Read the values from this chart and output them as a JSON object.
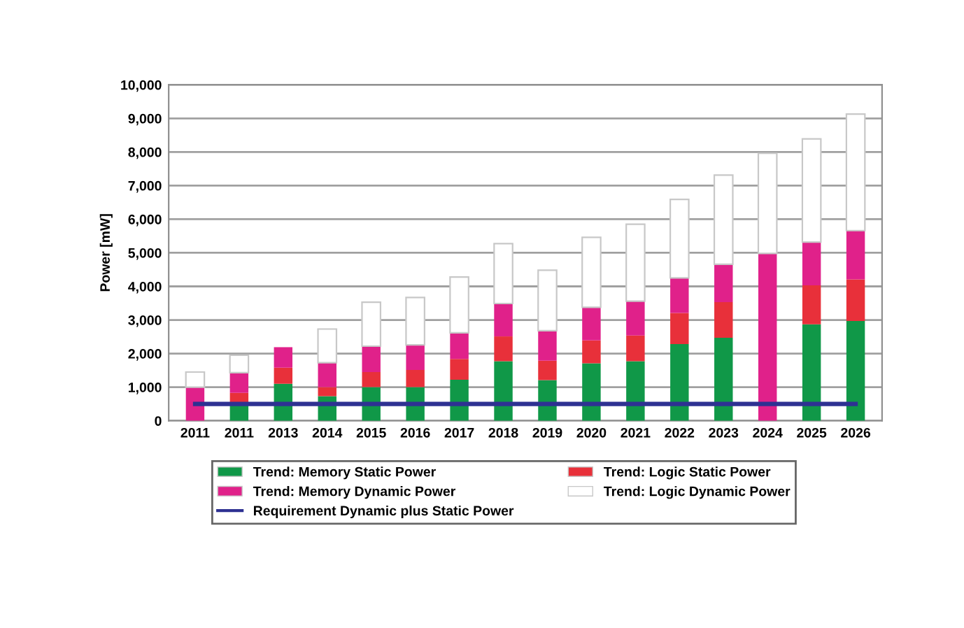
{
  "chart_data": {
    "type": "bar",
    "stacked": true,
    "ylabel": "Power [mW]",
    "categories": [
      "2011",
      "2011",
      "2013",
      "2014",
      "2015",
      "2016",
      "2017",
      "2018",
      "2019",
      "2020",
      "2021",
      "2022",
      "2023",
      "2024",
      "2025",
      "2026"
    ],
    "series": [
      {
        "name": "Trend: Memory Static Power",
        "color": "#109848",
        "values": [
          0,
          500,
          1100,
          730,
          1000,
          1000,
          1220,
          1770,
          1210,
          1710,
          1770,
          2280,
          2470,
          0,
          2870,
          2970
        ]
      },
      {
        "name": "Trend: Logic Static Power",
        "color": "#e8303a",
        "values": [
          0,
          330,
          480,
          270,
          450,
          510,
          620,
          740,
          580,
          680,
          770,
          930,
          1060,
          0,
          1160,
          1240
        ]
      },
      {
        "name": "Trend: Memory Dynamic Power",
        "color": "#e0218a",
        "values": [
          1000,
          600,
          610,
          730,
          770,
          750,
          780,
          980,
          890,
          990,
          1020,
          1040,
          1130,
          4980,
          1290,
          1450
        ]
      },
      {
        "name": "Trend: Logic Dynamic Power",
        "color": "#ffffff",
        "values": [
          450,
          520,
          0,
          1000,
          1310,
          1410,
          1660,
          1780,
          1800,
          2080,
          2290,
          2340,
          2650,
          2980,
          3070,
          3470
        ]
      },
      {
        "name": "Requirement Dynamic plus Static Power",
        "type": "line",
        "color": "#2e3192",
        "values": [
          500,
          500,
          500,
          500,
          500,
          500,
          500,
          500,
          500,
          500,
          500,
          500,
          500,
          500,
          500,
          500
        ]
      }
    ],
    "ylim": [
      0,
      10000
    ],
    "yticks": [
      0,
      {
        "value": 1000,
        "label": "1,000"
      },
      {
        "value": 2000,
        "label": "2,000"
      },
      {
        "value": 3000,
        "label": "3,000"
      },
      {
        "value": 4000,
        "label": "4,000"
      },
      {
        "value": 5000,
        "label": "5,000"
      },
      {
        "value": 6000,
        "label": "6,000"
      },
      {
        "value": 7000,
        "label": "7,000"
      },
      {
        "value": 8000,
        "label": "8,000"
      },
      {
        "value": 9000,
        "label": "9,000"
      },
      {
        "value": 10000,
        "label": "10,000"
      }
    ],
    "grid": "y",
    "legend": "bottom"
  }
}
